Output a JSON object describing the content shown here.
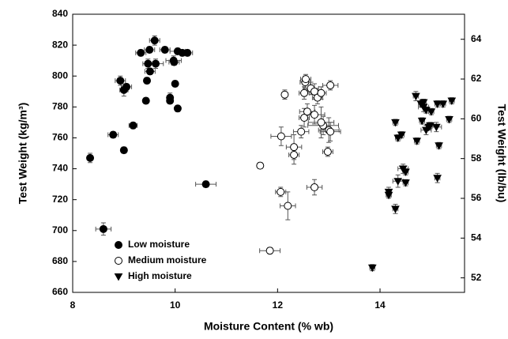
{
  "chart_data": {
    "type": "scatter",
    "x_label": "Moisture Content (% wb)",
    "y_label": "Test Weight (kg/m³)",
    "y2_label": "Test Weight (lb/bu)",
    "xlim": [
      8,
      15.65
    ],
    "xticks": [
      8,
      10,
      12,
      14
    ],
    "ylim": [
      660,
      840
    ],
    "yticks": [
      660,
      680,
      700,
      720,
      740,
      760,
      780,
      800,
      820,
      840
    ],
    "y2lim": [
      51.27,
      65.26
    ],
    "y2ticks": [
      52,
      54,
      56,
      58,
      60,
      62,
      64
    ],
    "legend": "lower-left",
    "series": [
      {
        "name": "Low moisture",
        "marker": "circle",
        "color": "#000000",
        "fill": "#000000",
        "x": [
          8.34,
          8.6,
          8.79,
          9.0,
          8.93,
          9.0,
          9.05,
          9.18,
          9.33,
          9.47,
          9.45,
          9.43,
          9.51,
          9.5,
          9.6,
          9.62,
          9.8,
          9.9,
          9.9,
          9.97,
          9.98,
          10.0,
          10.05,
          10.05,
          10.14,
          10.24,
          10.6
        ],
        "values": [
          747,
          701,
          762,
          752,
          797,
          791,
          793,
          768,
          815,
          808,
          797,
          784,
          803,
          817,
          823,
          808,
          817,
          786,
          784,
          810,
          809,
          795,
          779,
          816,
          815,
          815,
          730
        ],
        "xerr": [
          0.05,
          0.15,
          0.1,
          0.05,
          0.1,
          0.08,
          0.1,
          0.08,
          0.1,
          0.1,
          0.05,
          0.05,
          0.1,
          0.1,
          0.1,
          0.15,
          0.1,
          0.05,
          0.05,
          0.15,
          0.1,
          0.05,
          0.05,
          0.15,
          0.1,
          0.1,
          0.2
        ],
        "yerr": [
          3,
          4,
          2,
          2,
          3,
          4,
          2,
          2,
          2,
          3,
          2,
          2,
          2,
          2,
          3,
          3,
          2,
          3,
          2,
          3,
          2,
          2,
          2,
          2,
          2,
          2,
          2
        ]
      },
      {
        "name": "Medium moisture",
        "marker": "circle",
        "color": "#000000",
        "fill": "#ffffff",
        "x": [
          11.66,
          12.14,
          12.06,
          12.2,
          12.07,
          12.32,
          12.32,
          12.54,
          12.55,
          12.65,
          12.72,
          12.78,
          12.52,
          12.52,
          12.58,
          12.72,
          12.89,
          13.0,
          13.03,
          12.98,
          12.72,
          11.85,
          13.03,
          12.85,
          12.85,
          12.46
        ],
        "values": [
          742,
          788,
          725,
          716,
          761,
          754,
          749,
          796,
          798,
          792,
          790,
          786,
          789,
          773,
          777,
          775,
          768,
          765,
          764,
          751,
          728,
          687,
          794,
          789,
          770,
          764
        ],
        "xerr": [
          0.05,
          0.05,
          0.1,
          0.15,
          0.2,
          0.15,
          0.1,
          0.1,
          0.1,
          0.15,
          0.15,
          0.1,
          0.1,
          0.1,
          0.15,
          0.2,
          0.3,
          0.2,
          0.2,
          0.1,
          0.15,
          0.2,
          0.15,
          0.1,
          0.25,
          0.15
        ],
        "yerr": [
          2,
          3,
          3,
          9,
          6,
          8,
          6,
          4,
          3,
          4,
          5,
          4,
          4,
          6,
          5,
          6,
          6,
          8,
          6,
          3,
          5,
          2,
          3,
          4,
          10,
          4
        ]
      },
      {
        "name": "High moisture",
        "marker": "triangle-down",
        "color": "#000000",
        "fill": "#000000",
        "x": [
          13.85,
          14.17,
          14.17,
          14.3,
          14.3,
          14.35,
          14.35,
          14.42,
          14.45,
          14.5,
          14.5,
          14.7,
          14.72,
          14.82,
          14.85,
          14.85,
          14.9,
          14.9,
          14.95,
          14.98,
          15.0,
          15.1,
          15.12,
          15.15,
          15.12,
          15.23,
          15.35,
          15.4,
          14.8
        ],
        "values": [
          676,
          725,
          723,
          714,
          770,
          760,
          732,
          762,
          740,
          738,
          731,
          787,
          758,
          771,
          780,
          783,
          778,
          765,
          767,
          768,
          777,
          767,
          782,
          755,
          734,
          782,
          772,
          784,
          782
        ],
        "xerr": [
          0.05,
          0.05,
          0.05,
          0.05,
          0.05,
          0.05,
          0.1,
          0.05,
          0.1,
          0.05,
          0.05,
          0.05,
          0.05,
          0.05,
          0.1,
          0.05,
          0.05,
          0.1,
          0.05,
          0.05,
          0.05,
          0.1,
          0.05,
          0.05,
          0.05,
          0.05,
          0.05,
          0.05,
          0.05
        ],
        "yerr": [
          2,
          3,
          2,
          3,
          2,
          2,
          4,
          2,
          3,
          2,
          2,
          3,
          2,
          2,
          3,
          2,
          2,
          3,
          2,
          2,
          2,
          3,
          2,
          2,
          3,
          2,
          2,
          2,
          2
        ]
      }
    ]
  }
}
